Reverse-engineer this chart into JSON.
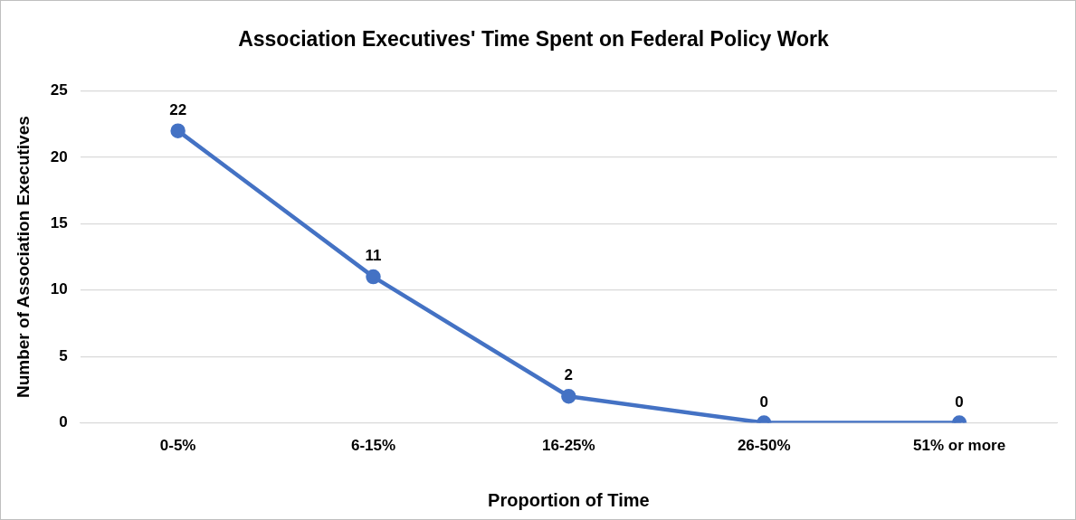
{
  "chart_data": {
    "type": "line",
    "title": "Association Executives' Time Spent on Federal Policy Work",
    "xlabel": "Proportion of Time",
    "ylabel": "Number of Association Executives",
    "categories": [
      "0-5%",
      "6-15%",
      "16-25%",
      "26-50%",
      "51% or more"
    ],
    "series": [
      {
        "color": "#4472c4",
        "values": [
          22,
          11,
          2,
          0,
          0
        ]
      }
    ],
    "ylim": [
      0,
      25
    ],
    "yticks": [
      0,
      5,
      10,
      15,
      20,
      25
    ],
    "grid": "y",
    "legend": false,
    "marker": "circle",
    "line_style": "solid",
    "data_labels": true
  }
}
